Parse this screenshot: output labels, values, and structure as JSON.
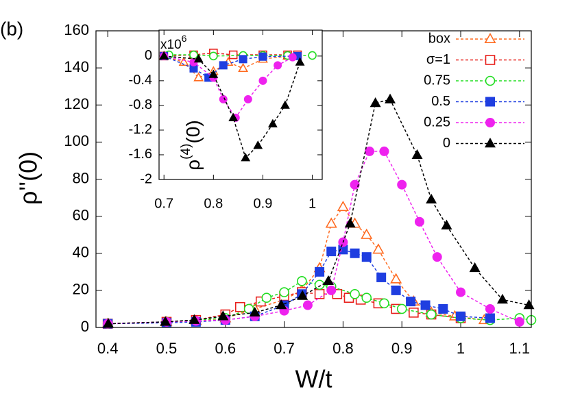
{
  "chart_data": [
    {
      "type": "line",
      "annotation": "(b)",
      "xlabel": "W/t",
      "ylabel": "ρ''(0)",
      "xlim": [
        0.38,
        1.12
      ],
      "ylim": [
        0,
        160
      ],
      "xticks": [
        0.4,
        0.5,
        0.6,
        0.7,
        0.8,
        0.9,
        1,
        1.1
      ],
      "yticks": [
        0,
        20,
        40,
        60,
        80,
        100,
        120,
        140,
        160
      ],
      "legend": "top-right",
      "series": [
        {
          "name": "box",
          "color": "#ff6a1f",
          "marker": "triangle-open",
          "x": [
            0.4,
            0.5,
            0.55,
            0.6,
            0.65,
            0.7,
            0.73,
            0.76,
            0.78,
            0.8,
            0.82,
            0.84,
            0.86,
            0.89,
            0.92,
            0.95,
            0.99,
            1.04
          ],
          "values": [
            2,
            3,
            3.5,
            5,
            10,
            15,
            20,
            32,
            56,
            65,
            56,
            50,
            42,
            26,
            14,
            8,
            6,
            4
          ]
        },
        {
          "name": "σ=1",
          "color": "#e8201c",
          "marker": "square-open",
          "x": [
            0.4,
            0.5,
            0.55,
            0.6,
            0.625,
            0.66,
            0.7,
            0.73,
            0.76,
            0.79,
            0.81,
            0.83,
            0.86,
            0.89,
            0.92,
            0.95,
            1.0
          ],
          "values": [
            2,
            3,
            4,
            7,
            11,
            14,
            17,
            19,
            18,
            18,
            16,
            15,
            13,
            10,
            8,
            7,
            5
          ]
        },
        {
          "name": "0.75",
          "color": "#22dd22",
          "marker": "circle-open",
          "x": [
            0.4,
            0.5,
            0.6,
            0.64,
            0.67,
            0.7,
            0.73,
            0.76,
            0.78,
            0.82,
            0.84,
            0.87,
            0.9,
            0.95,
            1.0,
            1.05,
            1.1,
            1.12
          ],
          "values": [
            2,
            3,
            5,
            10,
            16,
            19,
            25,
            23,
            22,
            18,
            16,
            13,
            10,
            7,
            5,
            4,
            5,
            4
          ]
        },
        {
          "name": "0.5",
          "color": "#1f3ee0",
          "marker": "square",
          "x": [
            0.4,
            0.5,
            0.55,
            0.6,
            0.65,
            0.7,
            0.73,
            0.76,
            0.78,
            0.8,
            0.82,
            0.84,
            0.865,
            0.89,
            0.915,
            0.94,
            0.97,
            1.0,
            1.05
          ],
          "values": [
            2,
            2.5,
            3,
            4,
            6,
            12,
            18,
            30,
            41,
            42,
            40,
            38,
            27,
            20,
            14,
            12,
            10,
            6,
            5
          ]
        },
        {
          "name": "0.25",
          "color": "#ee22ee",
          "marker": "circle",
          "x": [
            0.4,
            0.5,
            0.55,
            0.6,
            0.65,
            0.7,
            0.74,
            0.78,
            0.8,
            0.82,
            0.845,
            0.87,
            0.9,
            0.93,
            0.96,
            1.0,
            1.05,
            1.1
          ],
          "values": [
            2,
            3,
            3.5,
            4,
            6,
            9,
            12,
            20,
            46,
            77,
            95,
            95,
            77,
            57,
            38,
            19,
            10,
            3
          ]
        },
        {
          "name": "0",
          "color": "#000000",
          "marker": "triangle",
          "x": [
            0.401,
            0.498,
            0.547,
            0.596,
            0.65,
            0.695,
            0.731,
            0.775,
            0.812,
            0.855,
            0.88,
            0.926,
            0.95,
            0.976,
            1.024,
            1.071,
            1.116
          ],
          "values": [
            2,
            3,
            4,
            6,
            8,
            12,
            17,
            25,
            56,
            121,
            123,
            93,
            69,
            55,
            32,
            15,
            12
          ]
        }
      ]
    },
    {
      "type": "line",
      "multiplier": "x10",
      "multiplier_exp": "6",
      "ylabel": "ρ",
      "ylabel_sup": "(4)",
      "ylabel_tail": "(0)",
      "xlim": [
        0.69,
        1.02
      ],
      "ylim": [
        -2,
        0.42
      ],
      "xticks": [
        0.7,
        0.8,
        0.9,
        1
      ],
      "yticks": [
        -2,
        -1.6,
        -1.2,
        -0.8,
        -0.4,
        0
      ],
      "series": [
        {
          "color": "#ff6a1f",
          "marker": "triangle-open",
          "x": [
            0.7,
            0.74,
            0.77,
            0.8,
            0.83,
            0.86,
            0.9,
            0.95
          ],
          "values": [
            0,
            -0.1,
            -0.35,
            -0.25,
            -0.1,
            -0.2,
            -0.05,
            0
          ]
        },
        {
          "color": "#e8201c",
          "marker": "square-open",
          "x": [
            0.7,
            0.76,
            0.8,
            0.84,
            0.9,
            0.95,
            0.97
          ],
          "values": [
            0,
            0.02,
            0.05,
            0.02,
            0.02,
            0.02,
            0.02
          ]
        },
        {
          "color": "#22dd22",
          "marker": "circle-open",
          "x": [
            0.71,
            0.76,
            0.8,
            0.86,
            0.9,
            0.95,
            1.0
          ],
          "values": [
            0.02,
            0.02,
            0,
            0.01,
            0.01,
            0.01,
            0.01
          ]
        },
        {
          "color": "#1f3ee0",
          "marker": "square",
          "x": [
            0.7,
            0.76,
            0.79,
            0.82,
            0.86,
            0.9,
            0.97
          ],
          "values": [
            0,
            -0.2,
            -0.35,
            -0.15,
            -0.05,
            -0.01,
            0
          ]
        },
        {
          "color": "#ee22ee",
          "marker": "circle",
          "x": [
            0.7,
            0.76,
            0.8,
            0.82,
            0.845,
            0.87,
            0.9,
            0.93,
            0.96
          ],
          "values": [
            0,
            -0.1,
            -0.35,
            -0.7,
            -1.0,
            -0.7,
            -0.4,
            -0.15,
            -0.02
          ]
        },
        {
          "color": "#000000",
          "marker": "triangle",
          "x": [
            0.7,
            0.77,
            0.8,
            0.84,
            0.865,
            0.89,
            0.92,
            0.945,
            0.975
          ],
          "values": [
            0,
            -0.05,
            -0.3,
            -1.0,
            -1.65,
            -1.45,
            -1.1,
            -0.8,
            -0.1
          ]
        }
      ]
    }
  ]
}
